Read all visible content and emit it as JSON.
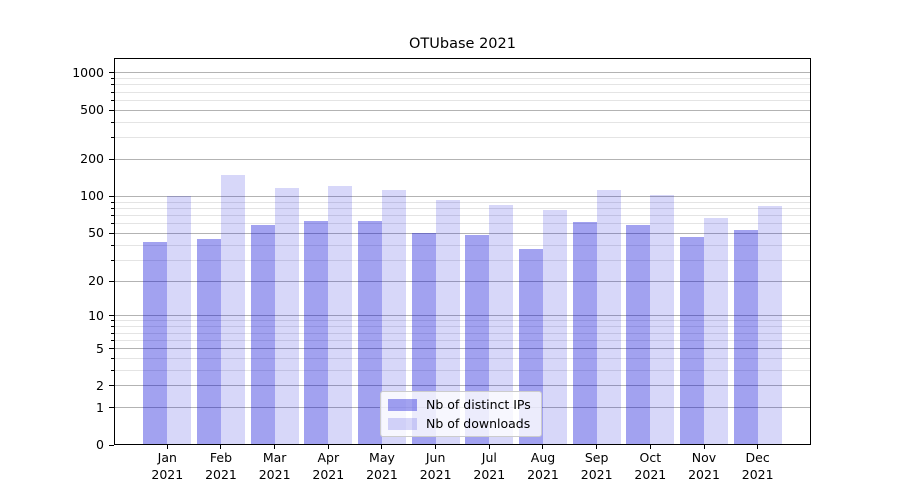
{
  "chart_data": {
    "type": "bar",
    "title": "OTUbase 2021",
    "categories": [
      "Jan 2021",
      "Feb 2021",
      "Mar 2021",
      "Apr 2021",
      "May 2021",
      "Jun 2021",
      "Jul 2021",
      "Aug 2021",
      "Sep 2021",
      "Oct 2021",
      "Nov 2021",
      "Dec 2021"
    ],
    "series": [
      {
        "name": "Nb of distinct IPs",
        "color": "rgba(0,0,215,0.365)",
        "values": [
          42,
          45,
          59,
          63,
          63,
          50,
          48,
          37,
          62,
          59,
          47,
          53
        ]
      },
      {
        "name": "Nb of downloads",
        "color": "rgba(0,0,215,0.155)",
        "values": [
          100,
          150,
          118,
          122,
          112,
          93,
          85,
          78,
          113,
          103,
          67,
          84
        ]
      }
    ],
    "yscale": "log1p",
    "ylim": [
      0,
      1320
    ],
    "y_major_ticks": [
      0,
      1,
      2,
      5,
      10,
      20,
      50,
      100,
      200,
      500,
      1000
    ],
    "y_minor_gridlines": [
      3,
      4,
      6,
      7,
      8,
      9,
      30,
      40,
      60,
      70,
      80,
      90,
      300,
      400,
      600,
      700,
      800,
      900
    ],
    "grid": true,
    "legend_position": "lower center",
    "xlabel": "",
    "ylabel": ""
  },
  "colors": {
    "major_grid": "#b3b3b3",
    "minor_grid": "#e4e4e4",
    "axis": "#000000",
    "legend_border": "#cccccc"
  }
}
